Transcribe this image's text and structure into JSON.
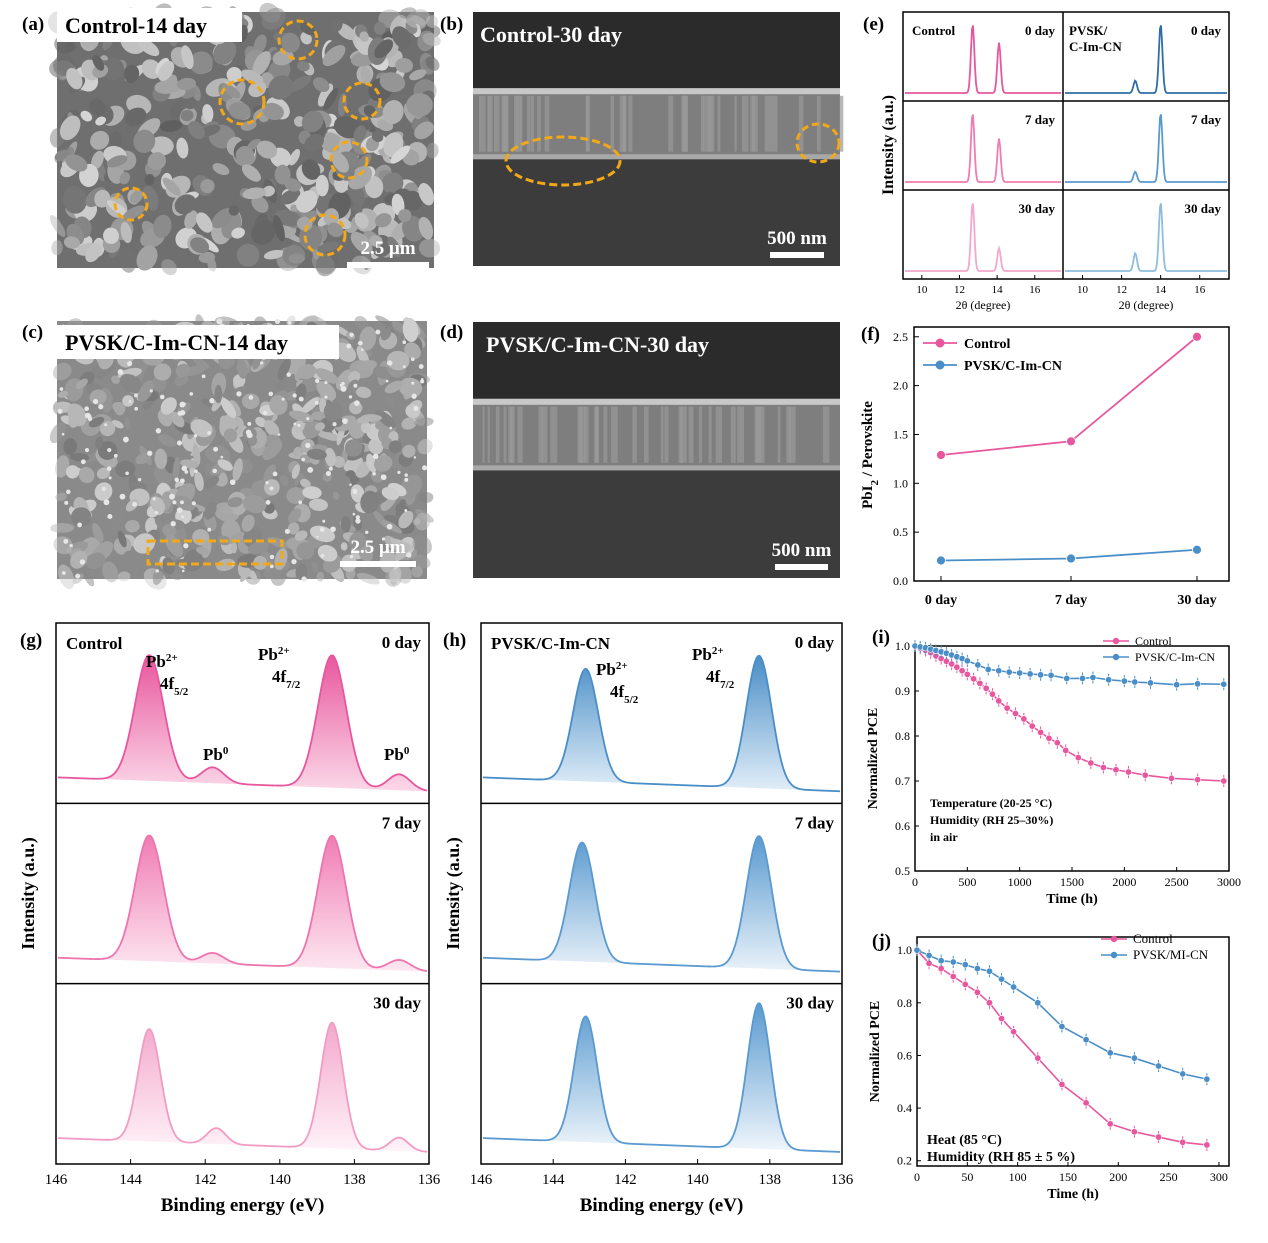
{
  "colors": {
    "pink": "#e8579e",
    "pink_light": "#f29cc4",
    "blue": "#4a8ec7",
    "blue_light": "#8fbde0",
    "orange": "#f2a818"
  },
  "panels": {
    "a": {
      "letter": "(a)",
      "label": "Control-14 day",
      "scale": "2.5 μm"
    },
    "b": {
      "letter": "(b)",
      "label": "Control-30 day",
      "scale": "500 nm"
    },
    "c": {
      "letter": "(c)",
      "label": "PVSK/C-Im-CN-14 day",
      "scale": "2.5 μm"
    },
    "d": {
      "letter": "(d)",
      "label": "PVSK/C-Im-CN-30 day",
      "scale": "500 nm"
    },
    "e": {
      "letter": "(e)",
      "ylabel": "Intensity (a.u.)",
      "xlabel": "2θ (degree)",
      "left_title": "Control",
      "right_title_1": "PVSK/",
      "right_title_2": "C-Im-CN",
      "days": [
        "0 day",
        "7 day",
        "30 day"
      ],
      "xticks": [
        "10",
        "12",
        "14",
        "16"
      ]
    },
    "f": {
      "letter": "(f)",
      "ylabel": "PbI",
      "ylabel_sub": "2",
      "ylabel_rest": " / Perovskite"
    },
    "g": {
      "letter": "(g)",
      "title": "Control",
      "ylabel": "Intensity (a.u.)",
      "xlabel": "Binding energy (eV)",
      "days": [
        "0 day",
        "7 day",
        "30 day"
      ],
      "lab_pb": "Pb",
      "sup_2p": "2+",
      "lab_4f": "4f",
      "sub_52": "5/2",
      "sub_72": "7/2",
      "sup_0": "0",
      "xticks": [
        "146",
        "144",
        "142",
        "140",
        "138",
        "136"
      ]
    },
    "h": {
      "letter": "(h)",
      "title": "PVSK/C-Im-CN",
      "ylabel": "Intensity (a.u.)",
      "xlabel": "Binding energy (eV)",
      "days": [
        "0 day",
        "7 day",
        "30 day"
      ],
      "xticks": [
        "146",
        "144",
        "142",
        "140",
        "138",
        "136"
      ]
    },
    "i": {
      "letter": "(i)",
      "ylabel": "Normalized PCE",
      "xlabel": "Time (h)",
      "note": [
        "Temperature (20-25 °C)",
        "Humidity (RH 25–30%)",
        "in air"
      ]
    },
    "j": {
      "letter": "(j)",
      "ylabel": "Normalized PCE",
      "xlabel": "Time (h)",
      "note": [
        "Heat (85 °C)",
        "Humidity (RH 85 ± 5 %)"
      ]
    }
  },
  "chart_data": [
    {
      "panel": "e",
      "type": "line",
      "xlabel": "2θ (degree)",
      "ylabel": "Intensity (a.u.)",
      "xlim": [
        9,
        17.5
      ],
      "series": [
        {
          "name": "Control",
          "peaks": [
            {
              "x": 12.7,
              "rel": [
                1.0,
                1.0,
                1.0
              ]
            },
            {
              "x": 14.1,
              "rel": [
                0.73,
                0.63,
                0.33
              ]
            }
          ]
        },
        {
          "name": "PVSK/C-Im-CN",
          "peaks": [
            {
              "x": 12.7,
              "rel": [
                0.18,
                0.15,
                0.26
              ]
            },
            {
              "x": 14.0,
              "rel": [
                1.0,
                1.0,
                1.0
              ]
            }
          ]
        }
      ]
    },
    {
      "panel": "f",
      "type": "line",
      "categories": [
        "0 day",
        "7 day",
        "30 day"
      ],
      "ylim": [
        0.0,
        2.6
      ],
      "yticks": [
        "0.0",
        "0.5",
        "1.0",
        "1.5",
        "2.0",
        "2.5"
      ],
      "series": [
        {
          "name": "Control",
          "values": [
            1.29,
            1.43,
            2.5
          ]
        },
        {
          "name": "PVSK/C-Im-CN",
          "values": [
            0.21,
            0.23,
            0.32
          ]
        }
      ]
    },
    {
      "panel": "g",
      "type": "area",
      "xlabel": "Binding energy (eV)",
      "ylabel": "Intensity (a.u.)",
      "xlim": [
        146,
        136
      ]
    },
    {
      "panel": "h",
      "type": "area",
      "xlabel": "Binding energy (eV)",
      "ylabel": "Intensity (a.u.)",
      "xlim": [
        146,
        136
      ]
    },
    {
      "panel": "i",
      "type": "line",
      "xlabel": "Time (h)",
      "ylabel": "Normalized PCE",
      "xlim": [
        0,
        3000
      ],
      "ylim": [
        0.5,
        1.0
      ],
      "xticks": [
        "0",
        "500",
        "1000",
        "1500",
        "2000",
        "2500",
        "3000"
      ],
      "yticks": [
        "0.5",
        "0.6",
        "0.7",
        "0.8",
        "0.9",
        "1.0"
      ],
      "series": [
        {
          "name": "Control",
          "x": [
            0,
            50,
            100,
            150,
            200,
            250,
            300,
            350,
            400,
            450,
            500,
            560,
            620,
            680,
            740,
            800,
            880,
            960,
            1040,
            1120,
            1200,
            1280,
            1360,
            1440,
            1560,
            1680,
            1800,
            1920,
            2040,
            2200,
            2450,
            2700,
            2950
          ],
          "y": [
            1.0,
            0.995,
            0.99,
            0.985,
            0.978,
            0.972,
            0.966,
            0.96,
            0.953,
            0.945,
            0.937,
            0.927,
            0.917,
            0.906,
            0.893,
            0.878,
            0.862,
            0.85,
            0.838,
            0.822,
            0.808,
            0.795,
            0.785,
            0.768,
            0.752,
            0.74,
            0.73,
            0.725,
            0.72,
            0.713,
            0.706,
            0.703,
            0.7
          ]
        },
        {
          "name": "PVSK/C-Im-CN",
          "x": [
            0,
            50,
            100,
            150,
            200,
            250,
            300,
            350,
            400,
            450,
            500,
            600,
            700,
            800,
            900,
            1000,
            1100,
            1200,
            1300,
            1450,
            1600,
            1700,
            1850,
            2000,
            2100,
            2250,
            2500,
            2700,
            2950
          ],
          "y": [
            1.0,
            0.998,
            0.996,
            0.993,
            0.99,
            0.987,
            0.984,
            0.98,
            0.976,
            0.972,
            0.967,
            0.958,
            0.948,
            0.945,
            0.942,
            0.94,
            0.938,
            0.936,
            0.935,
            0.928,
            0.928,
            0.93,
            0.925,
            0.922,
            0.92,
            0.918,
            0.914,
            0.916,
            0.915
          ]
        }
      ]
    },
    {
      "panel": "j",
      "type": "line",
      "xlabel": "Time (h)",
      "ylabel": "Normalized PCE",
      "xlim": [
        0,
        310
      ],
      "ylim": [
        0.18,
        1.05
      ],
      "xticks": [
        "0",
        "50",
        "100",
        "150",
        "200",
        "250",
        "300"
      ],
      "yticks": [
        "0.2",
        "0.4",
        "0.6",
        "0.8",
        "1.0"
      ],
      "series": [
        {
          "name": "Control",
          "x": [
            0,
            12,
            24,
            36,
            48,
            60,
            72,
            84,
            96,
            120,
            144,
            168,
            192,
            216,
            240,
            264,
            288
          ],
          "y": [
            1.0,
            0.95,
            0.93,
            0.9,
            0.87,
            0.84,
            0.8,
            0.74,
            0.69,
            0.59,
            0.49,
            0.42,
            0.34,
            0.31,
            0.29,
            0.27,
            0.26
          ]
        },
        {
          "name": "PVSK/MI-CN",
          "x": [
            0,
            12,
            24,
            36,
            48,
            60,
            72,
            84,
            96,
            120,
            144,
            168,
            192,
            216,
            240,
            264,
            288
          ],
          "y": [
            1.0,
            0.98,
            0.96,
            0.955,
            0.945,
            0.93,
            0.92,
            0.89,
            0.86,
            0.8,
            0.71,
            0.66,
            0.61,
            0.59,
            0.56,
            0.53,
            0.51
          ]
        }
      ]
    }
  ]
}
